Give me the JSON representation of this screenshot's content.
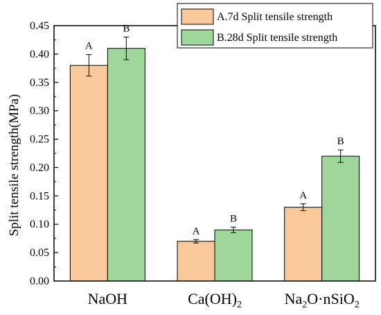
{
  "chart_data": {
    "type": "bar",
    "categories": [
      "NaOH",
      "Ca(OH)2",
      "Na2O·nSiO2"
    ],
    "category_labels": [
      [
        {
          "t": "NaOH",
          "sub": false
        }
      ],
      [
        {
          "t": "Ca(OH)",
          "sub": false
        },
        {
          "t": "2",
          "sub": true
        }
      ],
      [
        {
          "t": "Na",
          "sub": false
        },
        {
          "t": "2",
          "sub": true
        },
        {
          "t": "O·nSiO",
          "sub": false
        },
        {
          "t": "2",
          "sub": true
        }
      ]
    ],
    "series": [
      {
        "name": "A.7d Split tensile strength",
        "letter": "A",
        "color": "#f9c89b",
        "values": [
          0.38,
          0.07,
          0.13
        ],
        "errors": [
          0.019,
          0.003,
          0.006
        ]
      },
      {
        "name": "B.28d Split tensile strength",
        "letter": "B",
        "color": "#9fd79a",
        "values": [
          0.41,
          0.09,
          0.22
        ],
        "errors": [
          0.02,
          0.005,
          0.011
        ]
      }
    ],
    "ylabel": "Split tensile strength(MPa)",
    "xlabel": "",
    "ylim": [
      0,
      0.45
    ],
    "yticks": [
      "0.00",
      "0.05",
      "0.10",
      "0.15",
      "0.20",
      "0.25",
      "0.30",
      "0.35",
      "0.40",
      "0.45"
    ],
    "grid": false,
    "legend_position": "top-right"
  }
}
